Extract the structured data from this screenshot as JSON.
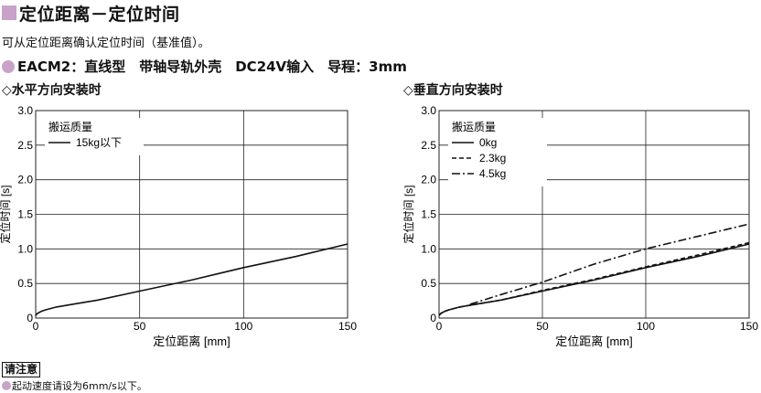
{
  "header": {
    "title": "定位距离－定位时间",
    "subtitle": "可从定位距离确认定位时间（基准值）。",
    "spec": "EACM2：直线型　带轴导轨外壳　DC24V输入　导程：3mm"
  },
  "colors": {
    "accent": "#c9a2c9",
    "grid": "#222222",
    "line": "#111111"
  },
  "chart_data": [
    {
      "type": "line",
      "title": "◇水平方向安装时",
      "xlabel": "定位距离 [mm]",
      "ylabel": "定位时间 [s]",
      "xlim": [
        0,
        150
      ],
      "ylim": [
        0,
        3.0
      ],
      "xticks": [
        "0",
        "50",
        "100",
        "150"
      ],
      "yticks": [
        "0",
        "0.5",
        "1.0",
        "1.5",
        "2.0",
        "2.5",
        "3.0"
      ],
      "grid": true,
      "legend_title": "搬运质量",
      "legend_position": "top-left",
      "series": [
        {
          "name": "15kg以下",
          "style": "solid",
          "x": [
            0,
            1,
            3,
            5,
            10,
            20,
            30,
            50,
            75,
            100,
            125,
            150
          ],
          "y": [
            0.04,
            0.07,
            0.1,
            0.12,
            0.16,
            0.21,
            0.26,
            0.39,
            0.55,
            0.73,
            0.89,
            1.07
          ]
        }
      ]
    },
    {
      "type": "line",
      "title": "◇垂直方向安装时",
      "xlabel": "定位距离 [mm]",
      "ylabel": "定位时间 [s]",
      "xlim": [
        0,
        150
      ],
      "ylim": [
        0,
        3.0
      ],
      "xticks": [
        "0",
        "50",
        "100",
        "150"
      ],
      "yticks": [
        "0",
        "0.5",
        "1.0",
        "1.5",
        "2.0",
        "2.5",
        "3.0"
      ],
      "grid": true,
      "legend_title": "搬运质量",
      "legend_position": "top-left",
      "series": [
        {
          "name": "0kg",
          "style": "solid",
          "x": [
            0,
            1,
            3,
            5,
            10,
            20,
            30,
            50,
            75,
            100,
            125,
            150
          ],
          "y": [
            0.04,
            0.07,
            0.1,
            0.12,
            0.16,
            0.21,
            0.26,
            0.39,
            0.55,
            0.73,
            0.89,
            1.07
          ]
        },
        {
          "name": "2.3kg",
          "style": "dashed",
          "x": [
            0,
            1,
            3,
            5,
            10,
            20,
            30,
            50,
            75,
            100,
            125,
            150
          ],
          "y": [
            0.04,
            0.07,
            0.1,
            0.12,
            0.16,
            0.21,
            0.26,
            0.4,
            0.56,
            0.74,
            0.91,
            1.09
          ]
        },
        {
          "name": "4.5kg",
          "style": "dashdot",
          "x": [
            15,
            30,
            50,
            75,
            100,
            125,
            150
          ],
          "y": [
            0.2,
            0.34,
            0.52,
            0.78,
            1.0,
            1.18,
            1.36
          ]
        }
      ]
    }
  ],
  "note": {
    "label": "请注意",
    "text": "起动速度请设为6mm/s以下。"
  }
}
